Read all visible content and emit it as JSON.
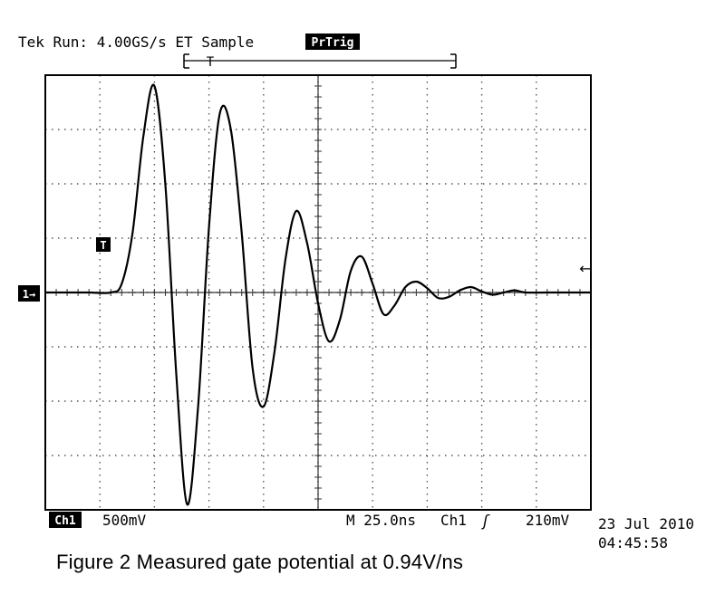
{
  "header": {
    "status_text": "Tek Run: 4.00GS/s ET Sample",
    "trigger_badge": "PrTrig",
    "trigger_marker": "T"
  },
  "footer": {
    "channel_badge": "Ch1",
    "volts_per_div": "500mV",
    "timebase": "M 25.0ns",
    "trigger_source": "Ch1",
    "trigger_slope_glyph": "ʃ",
    "trigger_level": "210mV",
    "date": "23 Jul 2010",
    "time": "04:45:58"
  },
  "markers": {
    "ch1_ground": "1→",
    "trigger_point": "T",
    "trigger_level_arrow": "←"
  },
  "caption": "Figure 2 Measured gate potential at 0.94V/ns",
  "chart_data": {
    "type": "line",
    "title": "",
    "xlabel": "",
    "ylabel": "",
    "x_unit": "ns",
    "y_unit": "V",
    "divisions": {
      "x": 10,
      "y": 8
    },
    "xlim": [
      0,
      250
    ],
    "ylim": [
      -2.0,
      2.0
    ],
    "grid": true,
    "colors": {
      "trace": "#000000",
      "grid": "#555555",
      "badge_bg": "#000000",
      "badge_fg": "#ffffff"
    },
    "series": [
      {
        "name": "",
        "x": [
          0,
          10,
          20,
          30,
          35,
          40,
          45,
          50,
          55,
          60,
          65,
          70,
          75,
          80,
          85,
          90,
          95,
          100,
          105,
          110,
          115,
          120,
          125,
          130,
          135,
          140,
          145,
          150,
          155,
          160,
          165,
          170,
          175,
          180,
          185,
          190,
          195,
          200,
          205,
          210,
          215,
          220,
          230,
          240,
          250
        ],
        "y": [
          0.0,
          0.0,
          0.0,
          0.0,
          0.08,
          0.55,
          1.45,
          1.9,
          1.0,
          -0.75,
          -1.95,
          -1.05,
          0.6,
          1.65,
          1.5,
          0.55,
          -0.7,
          -1.05,
          -0.55,
          0.3,
          0.75,
          0.45,
          -0.1,
          -0.45,
          -0.25,
          0.2,
          0.33,
          0.08,
          -0.2,
          -0.12,
          0.05,
          0.1,
          0.04,
          -0.05,
          -0.04,
          0.02,
          0.05,
          0.01,
          -0.02,
          0.0,
          0.02,
          0.0,
          0.0,
          0.0,
          0.0
        ]
      }
    ]
  }
}
